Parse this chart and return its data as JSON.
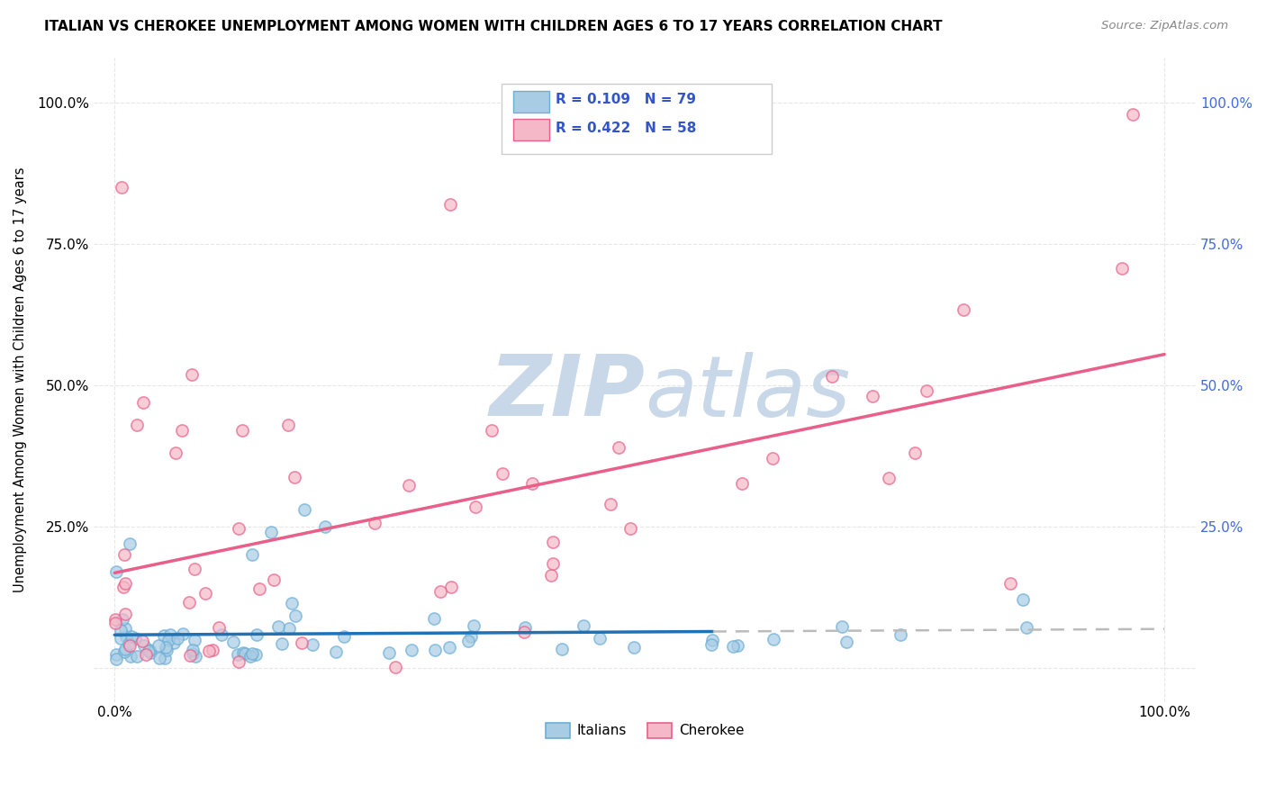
{
  "title": "ITALIAN VS CHEROKEE UNEMPLOYMENT AMONG WOMEN WITH CHILDREN AGES 6 TO 17 YEARS CORRELATION CHART",
  "source": "Source: ZipAtlas.com",
  "ylabel": "Unemployment Among Women with Children Ages 6 to 17 years",
  "italians_R": "0.109",
  "italians_N": "79",
  "cherokee_R": "0.422",
  "cherokee_N": "58",
  "italian_color": "#a8cce4",
  "cherokee_color": "#f4b8c8",
  "italian_line_color": "#2171b5",
  "cherokee_line_color": "#e8608a",
  "trend_dash_color": "#bbbbbb",
  "watermark_color": "#c8d8e8",
  "background_color": "#ffffff",
  "grid_color": "#e0e0e0",
  "legend_text_color": "#3355cc",
  "right_axis_color": "#4169e1"
}
